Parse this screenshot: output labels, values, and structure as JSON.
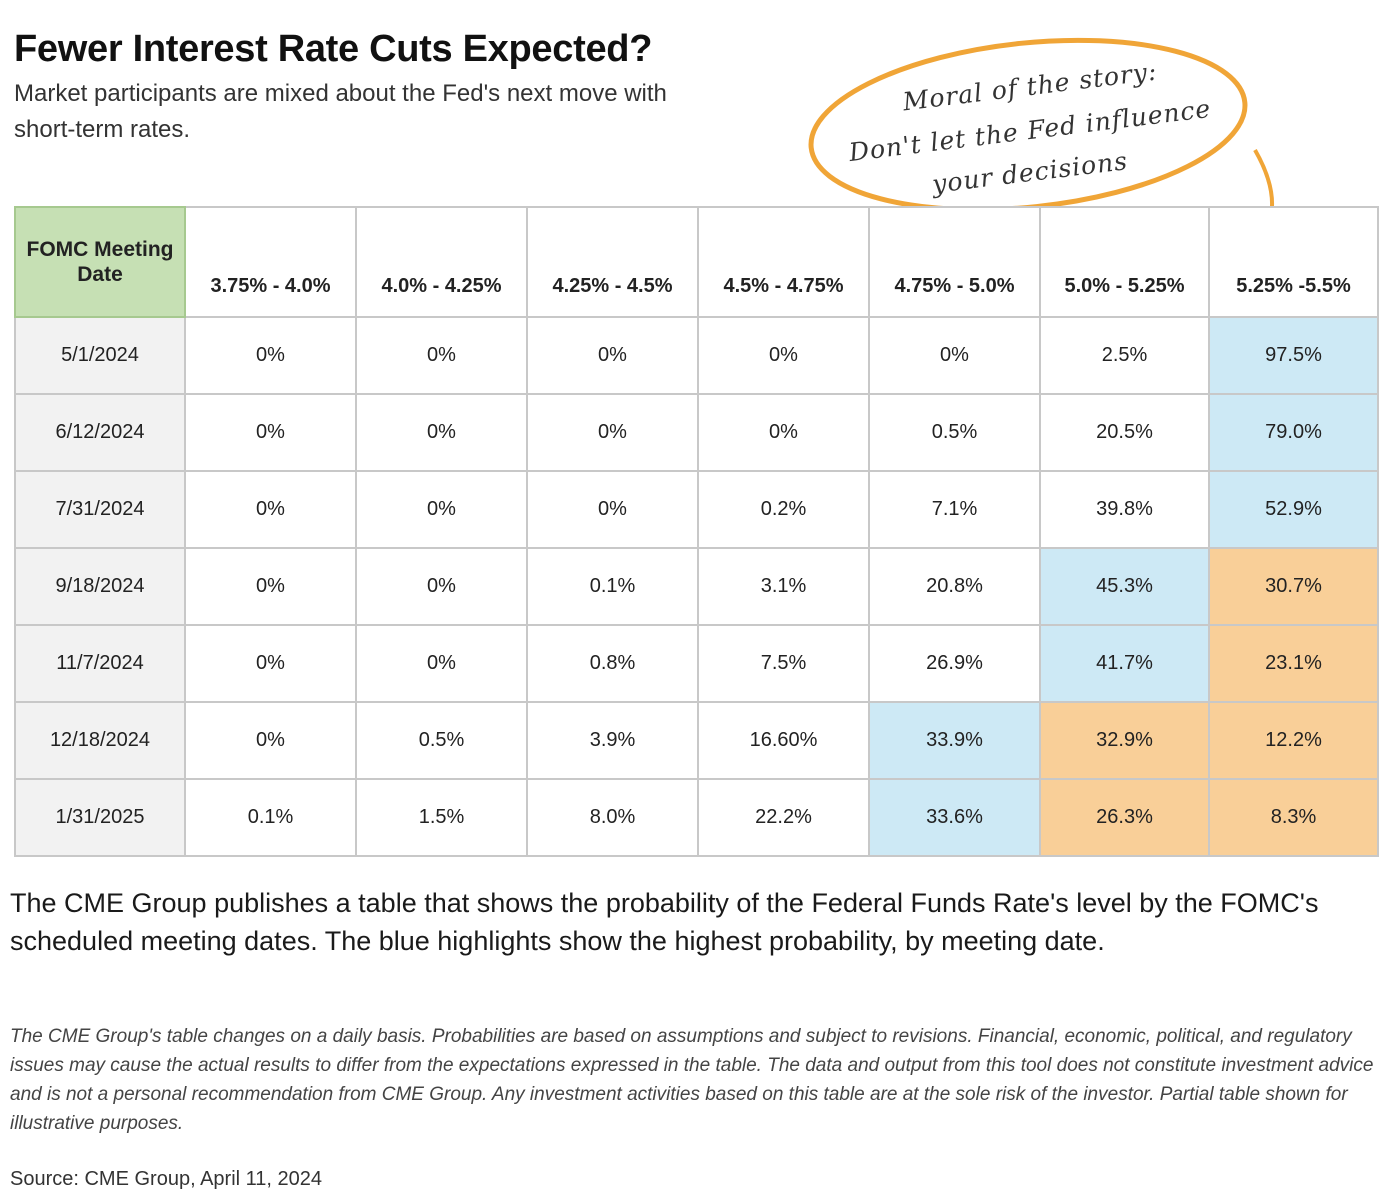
{
  "header": {
    "title": "Fewer Interest Rate Cuts Expected?",
    "subtitle": "Market participants are mixed about the Fed's next move with short-term rates."
  },
  "callout": {
    "line1": "Moral of the story:",
    "line2": "Don't let the Fed influence",
    "line3": "your decisions",
    "border_color": "#f0a537"
  },
  "colors": {
    "header_green": "#c6e0b4",
    "highlight_blue": "#cde9f5",
    "highlight_orange": "#f9cf98"
  },
  "chart_data": {
    "type": "table",
    "title": "Fewer Interest Rate Cuts Expected?",
    "corner_header": "FOMC Meeting Date",
    "columns": [
      "3.75% - 4.0%",
      "4.0% - 4.25%",
      "4.25% - 4.5%",
      "4.5% - 4.75%",
      "4.75% - 5.0%",
      "5.0% - 5.25%",
      "5.25% -5.5%"
    ],
    "rows": [
      {
        "date": "5/1/2024",
        "values": [
          "0%",
          "0%",
          "0%",
          "0%",
          "0%",
          "2.5%",
          "97.5%"
        ],
        "highlight": [
          "",
          "",
          "",
          "",
          "",
          "",
          "blue"
        ]
      },
      {
        "date": "6/12/2024",
        "values": [
          "0%",
          "0%",
          "0%",
          "0%",
          "0.5%",
          "20.5%",
          "79.0%"
        ],
        "highlight": [
          "",
          "",
          "",
          "",
          "",
          "",
          "blue"
        ]
      },
      {
        "date": "7/31/2024",
        "values": [
          "0%",
          "0%",
          "0%",
          "0.2%",
          "7.1%",
          "39.8%",
          "52.9%"
        ],
        "highlight": [
          "",
          "",
          "",
          "",
          "",
          "",
          "blue"
        ]
      },
      {
        "date": "9/18/2024",
        "values": [
          "0%",
          "0%",
          "0.1%",
          "3.1%",
          "20.8%",
          "45.3%",
          "30.7%"
        ],
        "highlight": [
          "",
          "",
          "",
          "",
          "",
          "blue",
          "orange"
        ]
      },
      {
        "date": "11/7/2024",
        "values": [
          "0%",
          "0%",
          "0.8%",
          "7.5%",
          "26.9%",
          "41.7%",
          "23.1%"
        ],
        "highlight": [
          "",
          "",
          "",
          "",
          "",
          "blue",
          "orange"
        ]
      },
      {
        "date": "12/18/2024",
        "values": [
          "0%",
          "0.5%",
          "3.9%",
          "16.60%",
          "33.9%",
          "32.9%",
          "12.2%"
        ],
        "highlight": [
          "",
          "",
          "",
          "",
          "blue",
          "orange",
          "orange"
        ]
      },
      {
        "date": "1/31/2025",
        "values": [
          "0.1%",
          "1.5%",
          "8.0%",
          "22.2%",
          "33.6%",
          "26.3%",
          "8.3%"
        ],
        "highlight": [
          "",
          "",
          "",
          "",
          "blue",
          "orange",
          "orange"
        ]
      }
    ]
  },
  "description": "The CME Group publishes a table that shows the probability of the Federal Funds Rate's level by the FOMC's scheduled meeting dates. The blue highlights show the highest probability, by meeting date.",
  "disclaimer": "The CME Group's table changes on a daily basis. Probabilities are based on assumptions and subject to revisions. Financial, economic, political, and regulatory issues may cause the actual results to differ from the expectations expressed in the table. The data and output from this tool does not constitute investment advice and is not a personal recommendation from CME Group. Any investment activities based on this table are at the sole risk of the investor. Partial table shown for illustrative purposes.",
  "source": "Source: CME Group, April 11, 2024"
}
